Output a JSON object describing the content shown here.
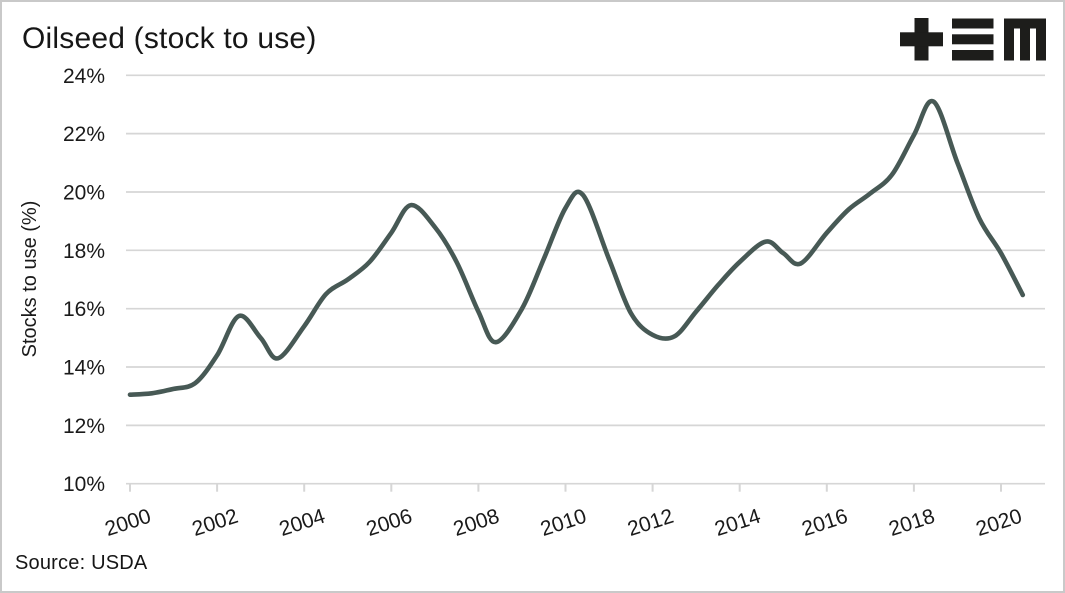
{
  "chart_data": {
    "type": "line",
    "title": "Oilseed (stock to use)",
    "ylabel": "Stocks to use (%)",
    "xlabel": "",
    "source": "Source: USDA",
    "legend": "none",
    "grid": "horizontal",
    "line_color": "#475955",
    "grid_color": "#d6d6d6",
    "text_color": "#1a1a1a",
    "logo_color": "#1d1d1b",
    "ylim": [
      10,
      24
    ],
    "xlim": [
      1999.9,
      2021
    ],
    "y_tick_values": [
      10,
      12,
      14,
      16,
      18,
      20,
      22,
      24
    ],
    "y_tick_labels": [
      "10%",
      "12%",
      "14%",
      "16%",
      "18%",
      "20%",
      "22%",
      "24%"
    ],
    "x_tick_values": [
      2000,
      2002,
      2004,
      2006,
      2008,
      2010,
      2012,
      2014,
      2016,
      2018,
      2020
    ],
    "x_tick_labels": [
      "2000",
      "2002",
      "2004",
      "2006",
      "2008",
      "2010",
      "2012",
      "2014",
      "2016",
      "2018",
      "2020"
    ],
    "series": [
      {
        "name": "Oilseed stocks to use (%)",
        "points": [
          [
            2000.0,
            13.05
          ],
          [
            2000.5,
            13.1
          ],
          [
            2001.0,
            13.25
          ],
          [
            2001.5,
            13.45
          ],
          [
            2002.0,
            14.4
          ],
          [
            2002.5,
            15.75
          ],
          [
            2003.0,
            15.0
          ],
          [
            2003.4,
            14.3
          ],
          [
            2004.0,
            15.4
          ],
          [
            2004.5,
            16.5
          ],
          [
            2005.0,
            17.0
          ],
          [
            2005.5,
            17.6
          ],
          [
            2006.0,
            18.6
          ],
          [
            2006.45,
            19.55
          ],
          [
            2007.0,
            18.8
          ],
          [
            2007.5,
            17.6
          ],
          [
            2008.0,
            15.9
          ],
          [
            2008.4,
            14.85
          ],
          [
            2009.0,
            16.0
          ],
          [
            2009.5,
            17.7
          ],
          [
            2010.0,
            19.45
          ],
          [
            2010.4,
            19.9
          ],
          [
            2011.0,
            17.7
          ],
          [
            2011.5,
            15.85
          ],
          [
            2012.0,
            15.1
          ],
          [
            2012.5,
            15.05
          ],
          [
            2013.0,
            15.9
          ],
          [
            2013.5,
            16.8
          ],
          [
            2014.0,
            17.6
          ],
          [
            2014.6,
            18.3
          ],
          [
            2015.0,
            17.9
          ],
          [
            2015.4,
            17.55
          ],
          [
            2016.0,
            18.6
          ],
          [
            2016.5,
            19.4
          ],
          [
            2017.0,
            19.95
          ],
          [
            2017.5,
            20.6
          ],
          [
            2018.0,
            21.95
          ],
          [
            2018.45,
            23.1
          ],
          [
            2019.0,
            21.0
          ],
          [
            2019.5,
            19.1
          ],
          [
            2020.0,
            17.9
          ],
          [
            2020.5,
            16.47
          ]
        ]
      }
    ]
  }
}
